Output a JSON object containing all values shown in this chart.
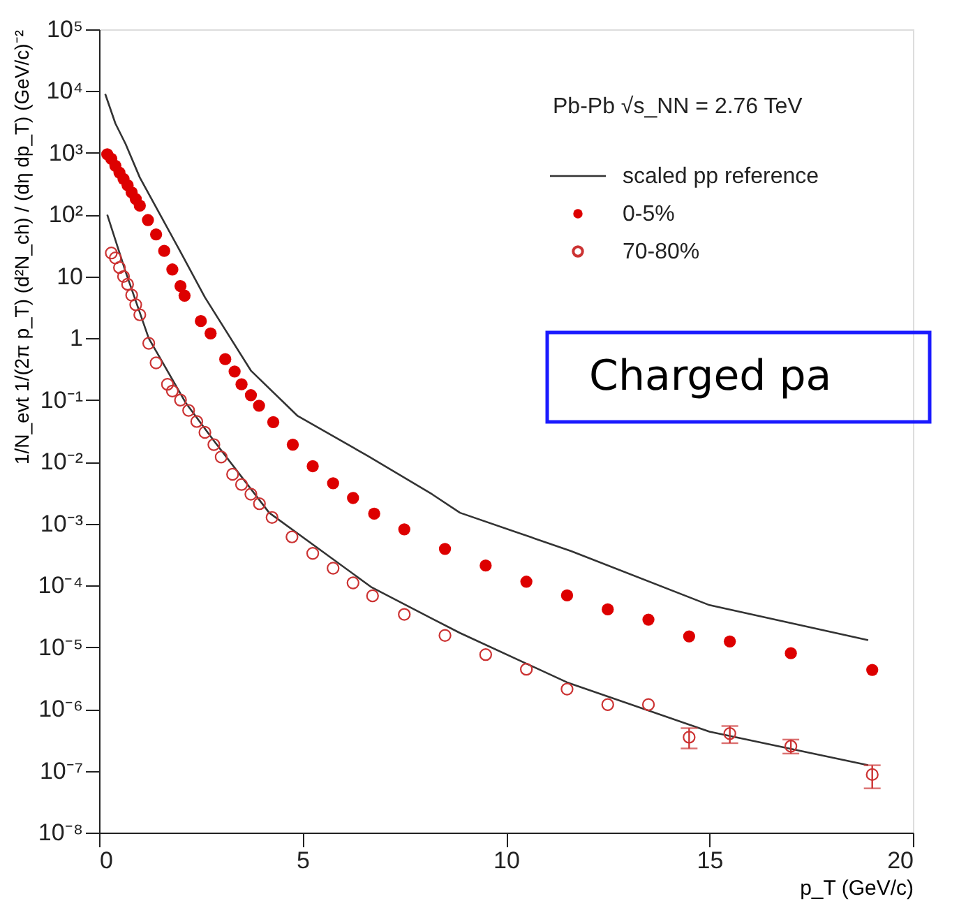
{
  "chart_data": {
    "type": "scatter",
    "xlabel": "p_T (GeV/c)",
    "ylabel": "1/N_evt 1/(2π p_T) (d²N_ch) / (dη dp_T) (GeV/c)⁻²",
    "annotations": [
      "Pb-Pb √s_NN = 2.76 TeV",
      "Charged pa"
    ],
    "log": "y",
    "legend": "top right",
    "grid": false,
    "xlim": [
      0,
      20
    ],
    "xticks": [
      0,
      5,
      10,
      15,
      20
    ],
    "ylim": [
      1e-08,
      100000
    ],
    "yticks": [
      {
        "value": 1e-08,
        "label": "10⁻⁸"
      },
      {
        "value": 1e-07,
        "label": "10⁻⁷"
      },
      {
        "value": 1e-06,
        "label": "10⁻⁶"
      },
      {
        "value": 1e-05,
        "label": "10⁻⁵"
      },
      {
        "value": 0.0001,
        "label": "10⁻⁴"
      },
      {
        "value": 0.001,
        "label": "10⁻³"
      },
      {
        "value": 0.01,
        "label": "10⁻²"
      },
      {
        "value": 0.1,
        "label": "10⁻¹"
      },
      1,
      10,
      {
        "value": 100,
        "label": "10²"
      },
      {
        "value": 1000,
        "label": "10³"
      },
      {
        "value": 10000,
        "label": "10⁴"
      },
      {
        "value": 100000,
        "label": "10⁵"
      }
    ],
    "series": [
      {
        "name": "scaled pp reference",
        "type": "line",
        "color": "#333333",
        "line_style": "solid",
        "x": [
          0.15,
          0.4,
          0.65,
          1.0,
          1.5,
          2.0,
          2.6,
          3.73,
          4.87,
          6.6,
          8.18,
          8.87,
          11.6,
          15.0,
          18.9
        ],
        "values": [
          9000,
          3000,
          1400,
          400,
          100,
          25,
          4.6,
          0.3,
          0.056,
          0.0125,
          0.003,
          0.0015,
          0.00036,
          4.8e-05,
          1.3e-05
        ]
      },
      {
        "type": "line",
        "color": "#333333",
        "line_style": "solid",
        "x": [
          0.2,
          0.65,
          1.22,
          2.13,
          2.82,
          4.18,
          6.7,
          8.18,
          8.87,
          11.5,
          15.0,
          18.9
        ],
        "values": [
          100,
          12,
          1.0,
          0.09,
          0.022,
          0.0015,
          9.3e-05,
          2.9e-05,
          1.7e-05,
          2.7e-06,
          4.3e-07,
          1.23e-07
        ]
      },
      {
        "name": "0-5%",
        "marker": "circle",
        "color": "#dd0000",
        "x": [
          0.2,
          0.3,
          0.4,
          0.5,
          0.6,
          0.7,
          0.8,
          0.9,
          1.0,
          1.2,
          1.4,
          1.6,
          1.8,
          2.0,
          2.1,
          2.5,
          2.74,
          3.1,
          3.33,
          3.5,
          3.73,
          3.93,
          4.28,
          4.76,
          5.25,
          5.75,
          6.24,
          6.76,
          7.5,
          8.5,
          9.5,
          10.5,
          11.5,
          12.5,
          13.5,
          14.5,
          15.5,
          17,
          19
        ],
        "values": [
          950,
          800,
          620,
          480,
          380,
          300,
          230,
          180,
          140,
          82,
          48,
          26,
          13,
          7,
          4.9,
          1.9,
          1.2,
          0.46,
          0.29,
          0.18,
          0.12,
          0.081,
          0.044,
          0.019,
          0.0085,
          0.0045,
          0.0026,
          0.00145,
          0.00081,
          0.00039,
          0.00021,
          0.000115,
          6.9e-05,
          4.1e-05,
          2.8e-05,
          1.5e-05,
          1.24e-05,
          8e-06,
          4.3e-06
        ]
      },
      {
        "name": "70-80%",
        "marker": "circle",
        "color": "#cc3333",
        "x": [
          0.3,
          0.4,
          0.5,
          0.6,
          0.7,
          0.8,
          0.9,
          1.0,
          1.22,
          1.4,
          1.68,
          1.8,
          2.0,
          2.2,
          2.4,
          2.6,
          2.82,
          3.0,
          3.28,
          3.5,
          3.73,
          3.94,
          4.25,
          4.74,
          5.25,
          5.75,
          6.24,
          6.72,
          7.5,
          8.5,
          9.5,
          10.5,
          11.5,
          12.5,
          13.5,
          14.5,
          15.5,
          17,
          19
        ],
        "values": [
          24,
          20,
          14,
          10,
          7.5,
          5,
          3.5,
          2.4,
          0.83,
          0.4,
          0.18,
          0.14,
          0.1,
          0.068,
          0.045,
          0.03,
          0.019,
          0.012,
          0.0063,
          0.0043,
          0.003,
          0.0021,
          0.00126,
          0.00061,
          0.00033,
          0.00019,
          0.00011,
          6.8e-05,
          3.4e-05,
          1.55e-05,
          7.6e-06,
          4.4e-06,
          2.1e-06,
          1.18e-06,
          1.18e-06,
          3.5e-07,
          4e-07,
          2.5e-07,
          8.7e-08
        ],
        "errors": [
          null,
          null,
          null,
          null,
          null,
          null,
          null,
          null,
          null,
          null,
          null,
          null,
          null,
          null,
          null,
          null,
          null,
          null,
          null,
          null,
          null,
          null,
          null,
          null,
          null,
          null,
          null,
          null,
          null,
          null,
          null,
          null,
          null,
          null,
          null,
          [
            2.3e-07,
            4.9e-07
          ],
          [
            2.8e-07,
            5.3e-07
          ],
          [
            1.9e-07,
            3.2e-07
          ],
          [
            5.2e-08,
            1.23e-07
          ]
        ]
      }
    ]
  }
}
